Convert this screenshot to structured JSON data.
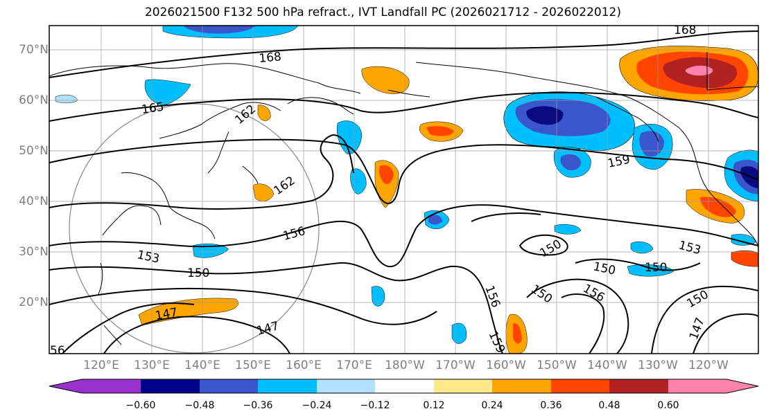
{
  "title": "2026021500 F132 500 hPa refract., IVT Landfall PC (2026021712 - 2026022012)",
  "lat_labels": [
    "70°N",
    "60°N",
    "50°N",
    "40°N",
    "30°N",
    "20°N"
  ],
  "lon_labels": [
    "120°E",
    "130°E",
    "140°E",
    "150°E",
    "160°E",
    "170°E",
    "180°W",
    "170°W",
    "160°W",
    "150°W",
    "140°W",
    "130°W",
    "120°W"
  ],
  "contour_labels": [
    "168",
    "168",
    "165",
    "162",
    "162",
    "159",
    "156",
    "153",
    "153",
    "150",
    "150",
    "150",
    "150",
    "150",
    "147",
    "147",
    "147",
    "156",
    "156",
    "150",
    "159",
    "56"
  ],
  "colorbar": {
    "ticks": [
      "−0.60",
      "−0.48",
      "−0.36",
      "−0.24",
      "−0.12",
      "0.12",
      "0.24",
      "0.36",
      "0.48",
      "0.60"
    ],
    "colors": [
      "#9932cc",
      "#00008b",
      "#3b56cc",
      "#00bfff",
      "#b0e2ff",
      "#ffffff",
      "#ffe98a",
      "#ffa500",
      "#ff4500",
      "#b22222",
      "#ff82ab",
      "#ff82ab"
    ]
  },
  "colors": {
    "dark_blue": "#0a0a80",
    "med_blue": "#3b56cc",
    "cyan": "#00bfff",
    "light_blue": "#b0e2ff",
    "yellow": "#ffe98a",
    "orange": "#ffa500",
    "red_orange": "#ff4500",
    "dark_red": "#b22222",
    "pink": "#ff82ab"
  }
}
